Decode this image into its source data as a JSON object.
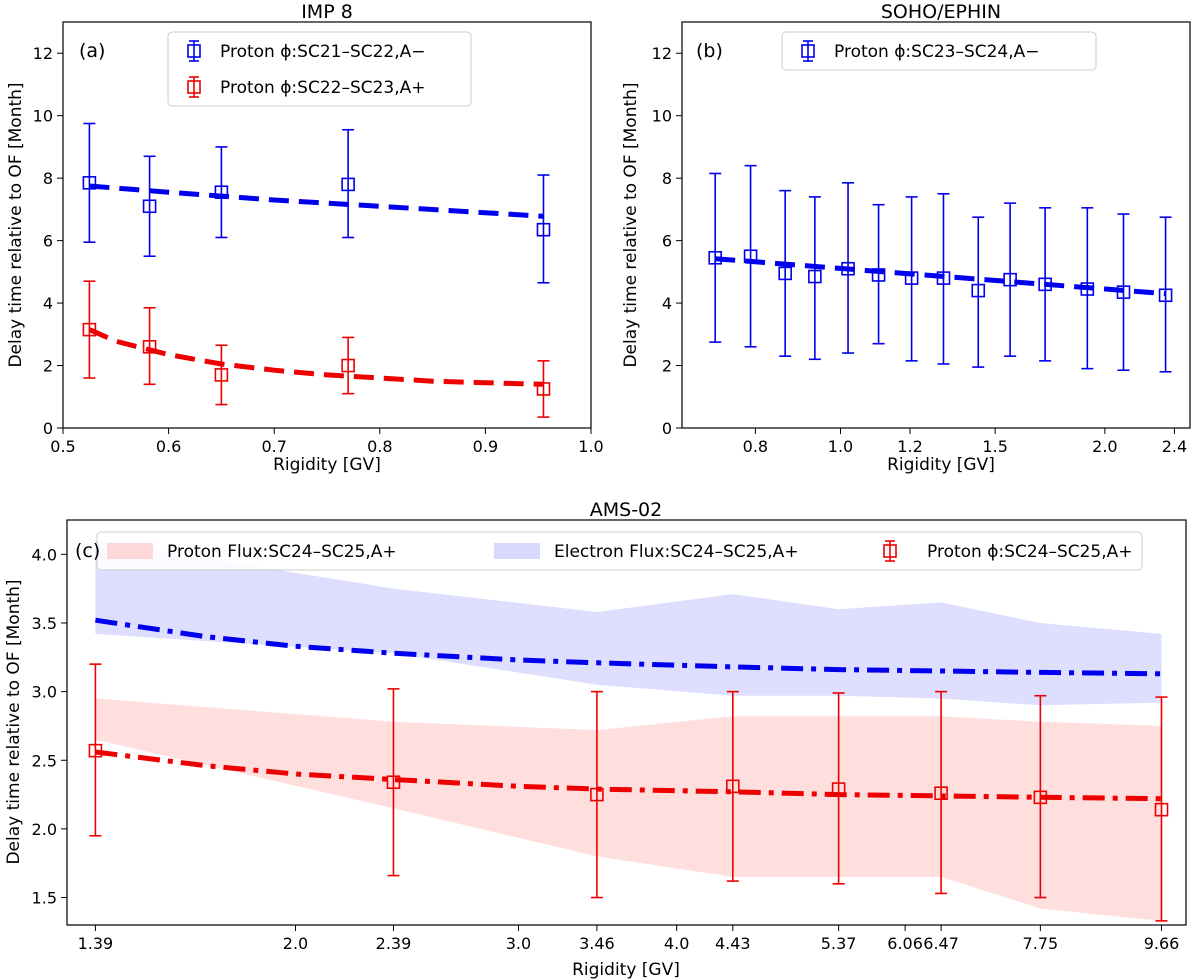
{
  "chart_data": [
    {
      "panel": "a",
      "type": "scatter",
      "title": "IMP 8",
      "panel_label": "(a)",
      "xlabel": "Rigidity [GV]",
      "ylabel": "Delay time relative to OF [Month]",
      "xlim": [
        0.5,
        1.0
      ],
      "ylim": [
        0,
        13
      ],
      "xscale": "linear",
      "xticks": [
        0.5,
        0.6,
        0.7,
        0.8,
        0.9,
        1.0
      ],
      "xtick_labels": [
        "0.5",
        "0.6",
        "0.7",
        "0.8",
        "0.9",
        "1.0"
      ],
      "yticks": [
        0,
        2,
        4,
        6,
        8,
        10,
        12
      ],
      "ytick_labels": [
        "0",
        "2",
        "4",
        "6",
        "8",
        "10",
        "12"
      ],
      "legend_position": "top-center",
      "series": [
        {
          "name": "Proton ϕ:SC21–SC22,A−",
          "color": "#0000ee",
          "x": [
            0.525,
            0.582,
            0.65,
            0.77,
            0.955
          ],
          "y": [
            7.85,
            7.1,
            7.55,
            7.8,
            6.35
          ],
          "yerr_low": [
            5.95,
            5.5,
            6.1,
            6.1,
            4.65
          ],
          "yerr_high": [
            9.75,
            8.7,
            9.0,
            9.55,
            8.1
          ],
          "fit": {
            "style": "dashed",
            "x": [
              0.525,
              0.6,
              0.7,
              0.8,
              0.955
            ],
            "y": [
              7.75,
              7.55,
              7.3,
              7.1,
              6.78
            ]
          }
        },
        {
          "name": "Proton ϕ:SC22–SC23,A+",
          "color": "#ee0000",
          "x": [
            0.525,
            0.582,
            0.65,
            0.77,
            0.955
          ],
          "y": [
            3.15,
            2.6,
            1.7,
            2.0,
            1.25
          ],
          "yerr_low": [
            1.6,
            1.4,
            0.75,
            1.1,
            0.35
          ],
          "yerr_high": [
            4.7,
            3.85,
            2.65,
            2.9,
            2.15
          ],
          "fit": {
            "style": "dashed",
            "x": [
              0.525,
              0.55,
              0.6,
              0.65,
              0.7,
              0.75,
              0.8,
              0.85,
              0.9,
              0.955
            ],
            "y": [
              3.15,
              2.78,
              2.35,
              2.05,
              1.85,
              1.7,
              1.6,
              1.5,
              1.45,
              1.4
            ]
          }
        }
      ]
    },
    {
      "panel": "b",
      "type": "scatter",
      "title": "SOHO/EPHIN",
      "panel_label": "(b)",
      "xlabel": "Rigidity [GV]",
      "ylabel": "Delay time relative to OF [Month]",
      "xlim": [
        0.66,
        2.5
      ],
      "ylim": [
        0,
        13
      ],
      "xscale": "log",
      "xticks": [
        0.8,
        1.0,
        1.2,
        1.5,
        2.0,
        2.4
      ],
      "xtick_labels": [
        "0.8",
        "1.0",
        "1.2",
        "1.5",
        "2.0",
        "2.4"
      ],
      "yticks": [
        0,
        2,
        4,
        6,
        8,
        10,
        12
      ],
      "ytick_labels": [
        "0",
        "2",
        "4",
        "6",
        "8",
        "10",
        "12"
      ],
      "legend_position": "top-center",
      "series": [
        {
          "name": "Proton ϕ:SC23–SC24,A−",
          "color": "#0000ee",
          "x": [
            0.72,
            0.79,
            0.865,
            0.935,
            1.02,
            1.105,
            1.205,
            1.31,
            1.435,
            1.56,
            1.71,
            1.91,
            2.1,
            2.345
          ],
          "y": [
            5.45,
            5.5,
            4.95,
            4.85,
            5.1,
            4.9,
            4.8,
            4.8,
            4.4,
            4.75,
            4.6,
            4.45,
            4.35,
            4.25
          ],
          "yerr_low": [
            2.75,
            2.6,
            2.3,
            2.2,
            2.4,
            2.7,
            2.15,
            2.05,
            1.95,
            2.3,
            2.15,
            1.9,
            1.85,
            1.8
          ],
          "yerr_high": [
            8.15,
            8.4,
            7.6,
            7.4,
            7.85,
            7.15,
            7.4,
            7.5,
            6.75,
            7.2,
            7.05,
            7.05,
            6.85,
            6.75
          ],
          "fit": {
            "style": "dashed",
            "x": [
              0.72,
              2.345
            ],
            "y": [
              5.42,
              4.3
            ]
          }
        }
      ]
    },
    {
      "panel": "c",
      "type": "area",
      "title": "AMS-02",
      "panel_label": "(c)",
      "xlabel": "Rigidity [GV]",
      "ylabel": "Delay time relative to OF [Month]",
      "xlim": [
        1.32,
        10.1
      ],
      "ylim": [
        1.3,
        4.25
      ],
      "xscale": "log",
      "xticks": [
        1.39,
        2.0,
        2.39,
        3.0,
        3.46,
        4.0,
        4.43,
        5.37,
        6.06,
        6.47,
        7.75,
        9.66
      ],
      "xtick_labels": [
        "1.39",
        "2.0",
        "2.39",
        "3.0",
        "3.46",
        "4.0",
        "4.43",
        "5.37",
        "6.06",
        "6.47",
        "7.75",
        "9.66"
      ],
      "yticks": [
        1.5,
        2.0,
        2.5,
        3.0,
        3.5,
        4.0
      ],
      "ytick_labels": [
        "1.5",
        "2.0",
        "2.5",
        "3.0",
        "3.5",
        "4.0"
      ],
      "legend_position": "top",
      "series": [
        {
          "name": "Proton Flux:SC24–SC25,A+",
          "kind": "band",
          "color": "#ffcccc",
          "x": [
            1.39,
            2.39,
            3.46,
            4.43,
            5.37,
            6.47,
            7.75,
            9.66
          ],
          "lower": [
            2.65,
            2.15,
            1.8,
            1.65,
            1.65,
            1.65,
            1.42,
            1.33
          ],
          "upper": [
            2.95,
            2.78,
            2.72,
            2.82,
            2.82,
            2.82,
            2.78,
            2.75
          ]
        },
        {
          "name": "Electron Flux:SC24–SC25,A+",
          "kind": "band",
          "color": "#ccccff",
          "x": [
            1.39,
            2.39,
            3.46,
            4.43,
            5.37,
            6.47,
            7.75,
            9.66
          ],
          "lower": [
            3.42,
            3.28,
            3.05,
            2.97,
            2.97,
            2.95,
            2.9,
            2.92
          ],
          "upper": [
            4.1,
            3.75,
            3.58,
            3.71,
            3.6,
            3.65,
            3.5,
            3.42
          ]
        },
        {
          "name": "Proton ϕ:SC24–SC25,A+",
          "kind": "points",
          "color": "#ee0000",
          "x": [
            1.39,
            2.39,
            3.46,
            4.43,
            5.37,
            6.47,
            7.75,
            9.66
          ],
          "y": [
            2.57,
            2.34,
            2.25,
            2.31,
            2.29,
            2.26,
            2.23,
            2.14
          ],
          "yerr_low": [
            1.95,
            1.66,
            1.5,
            1.62,
            1.6,
            1.53,
            1.5,
            1.33
          ],
          "yerr_high": [
            3.2,
            3.02,
            3.0,
            3.0,
            2.99,
            3.0,
            2.97,
            2.96
          ]
        },
        {
          "kind": "fit",
          "color": "#0000ee",
          "style": "dashdot",
          "x": [
            1.39,
            1.7,
            2.0,
            2.39,
            3.0,
            3.46,
            4.43,
            5.37,
            6.47,
            7.75,
            9.66
          ],
          "y": [
            3.52,
            3.4,
            3.33,
            3.28,
            3.23,
            3.21,
            3.18,
            3.16,
            3.15,
            3.14,
            3.13
          ]
        },
        {
          "kind": "fit",
          "color": "#ee0000",
          "style": "dashdot",
          "x": [
            1.39,
            1.7,
            2.0,
            2.39,
            3.0,
            3.46,
            4.43,
            5.37,
            6.47,
            7.75,
            9.66
          ],
          "y": [
            2.56,
            2.46,
            2.4,
            2.36,
            2.31,
            2.29,
            2.27,
            2.25,
            2.24,
            2.23,
            2.22
          ]
        }
      ]
    }
  ]
}
